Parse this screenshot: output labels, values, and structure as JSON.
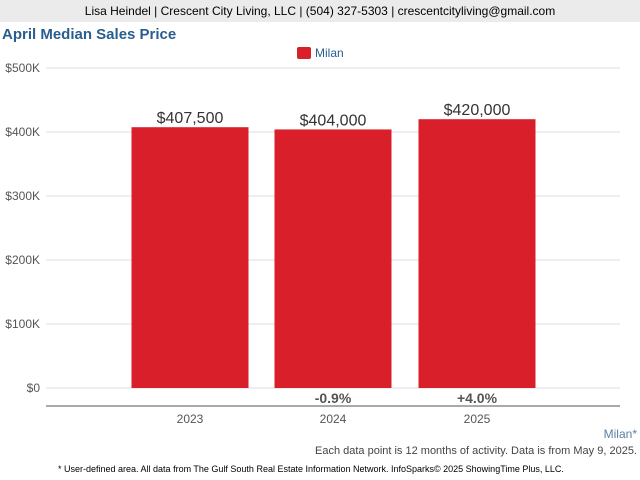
{
  "header": {
    "contact": "Lisa Heindel | Crescent City Living, LLC | (504) 327-5303 | crescentcityliving@gmail.com"
  },
  "colors": {
    "bar": "#d9202a",
    "title": "#2a5d8f"
  },
  "chart_data": {
    "type": "bar",
    "title": "April Median Sales Price",
    "categories": [
      "2023",
      "2024",
      "2025"
    ],
    "series": [
      {
        "name": "Milan",
        "values": [
          407500,
          404000,
          420000
        ]
      }
    ],
    "value_labels": [
      "$407,500",
      "$404,000",
      "$420,000"
    ],
    "change_labels": [
      "",
      "-0.9%",
      "+4.0%"
    ],
    "ylim": [
      0,
      500000
    ],
    "yticks": [
      0,
      100000,
      200000,
      300000,
      400000,
      500000
    ],
    "ytick_labels": [
      "$0",
      "$100K",
      "$200K",
      "$300K",
      "$400K",
      "$500K"
    ],
    "grid": true,
    "legend": "top-center",
    "xlabel": "",
    "ylabel": ""
  },
  "footer": {
    "area": "Milan*",
    "activity_note": "Each data point is 12 months of activity. Data is from May 9, 2025.",
    "source_note": "* User-defined area. All data from The Gulf South Real Estate Information Network. InfoSparks© 2025 ShowingTime Plus, LLC."
  }
}
